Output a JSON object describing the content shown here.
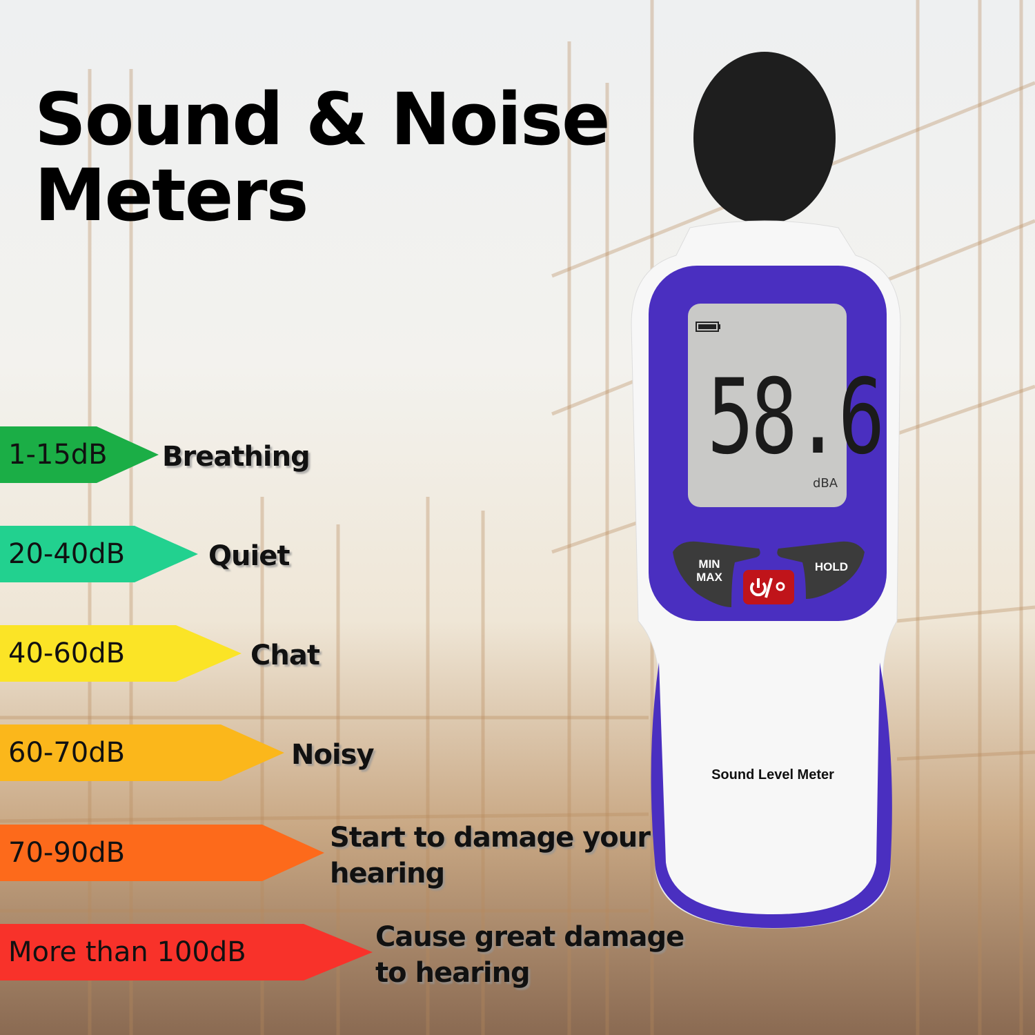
{
  "title": {
    "line1": "Sound & Noise",
    "line2": "Meters"
  },
  "levels": [
    {
      "range": "1-15dB",
      "description": [
        "Breathing"
      ],
      "color": "#1bae46"
    },
    {
      "range": "20-40dB",
      "description": [
        "Quiet"
      ],
      "color": "#22d18f"
    },
    {
      "range": "40-60dB",
      "description": [
        "Chat"
      ],
      "color": "#fbe426"
    },
    {
      "range": "60-70dB",
      "description": [
        "Noisy"
      ],
      "color": "#fbb71b"
    },
    {
      "range": "70-90dB",
      "description": [
        "Start to damage your",
        "hearing"
      ],
      "color": "#fd6a1b"
    },
    {
      "range": "More than 100dB",
      "description": [
        "Cause great damage",
        "to hearing"
      ],
      "color": "#f8322a"
    }
  ],
  "meter": {
    "reading": "58.6",
    "unit": "dBA",
    "battery_icon": "battery-full-icon",
    "buttons": {
      "minmax_line1": "MIN",
      "minmax_line2": "MAX",
      "hold": "HOLD",
      "power_icon": "power-light-icon"
    },
    "label": "Sound Level Meter",
    "accent_color": "#4a2fc0",
    "power_button_color": "#c0141a"
  }
}
